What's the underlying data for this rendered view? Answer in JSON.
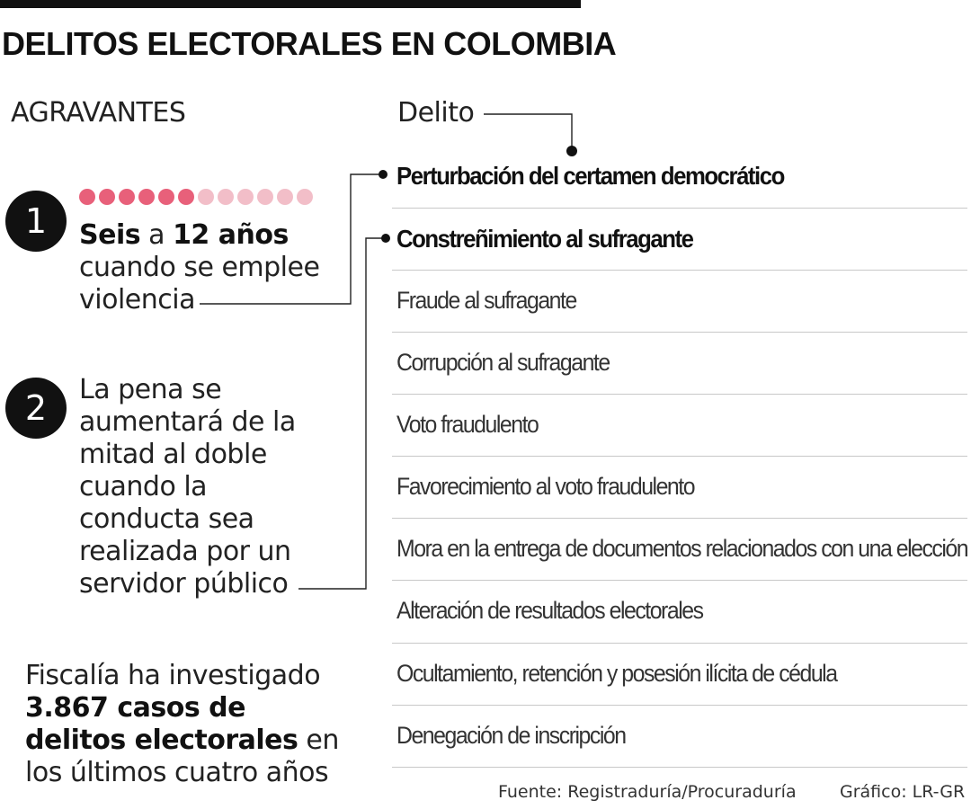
{
  "title": "DELITOS ELECTORALES EN COLOMBIA",
  "agravantes_label": "AGRAVANTES",
  "delito_label": "Delito",
  "colors": {
    "dot_filled": "#e8607a",
    "dot_empty": "#f2bec8",
    "ink": "#111111"
  },
  "agravantes": [
    {
      "number": "1",
      "scale": {
        "filled": 6,
        "total": 12
      },
      "bold1": "Seis",
      "mid": " a ",
      "bold2": "12 años",
      "line2": "cuando se emplee",
      "line3": "violencia"
    },
    {
      "number": "2",
      "lines": [
        "La pena se",
        "aumentará de la",
        "mitad al doble",
        "cuando la",
        "conducta sea",
        "realizada por un",
        "servidor público"
      ]
    }
  ],
  "stat": {
    "line1": "Fiscalía ha investigado",
    "bold1": "3.867 casos de",
    "bold2": "delitos electorales",
    "after_bold2": " en",
    "line4": "los últimos cuatro años"
  },
  "delitos": [
    "Perturbación del certamen democrático",
    "Constreñimiento al sufragante",
    "Fraude al sufragante",
    "Corrupción al sufragante",
    "Voto fraudulento",
    "Favorecimiento al voto fraudulento",
    "Mora en la entrega de documentos relacionados con una elección",
    "Alteración de resultados electorales",
    "Ocultamiento, retención y posesión ilícita de cédula",
    "Denegación de inscripción"
  ],
  "footer": {
    "source": "Fuente: Registraduría/Procuraduría",
    "credit": "Gráfico: LR-GR"
  }
}
